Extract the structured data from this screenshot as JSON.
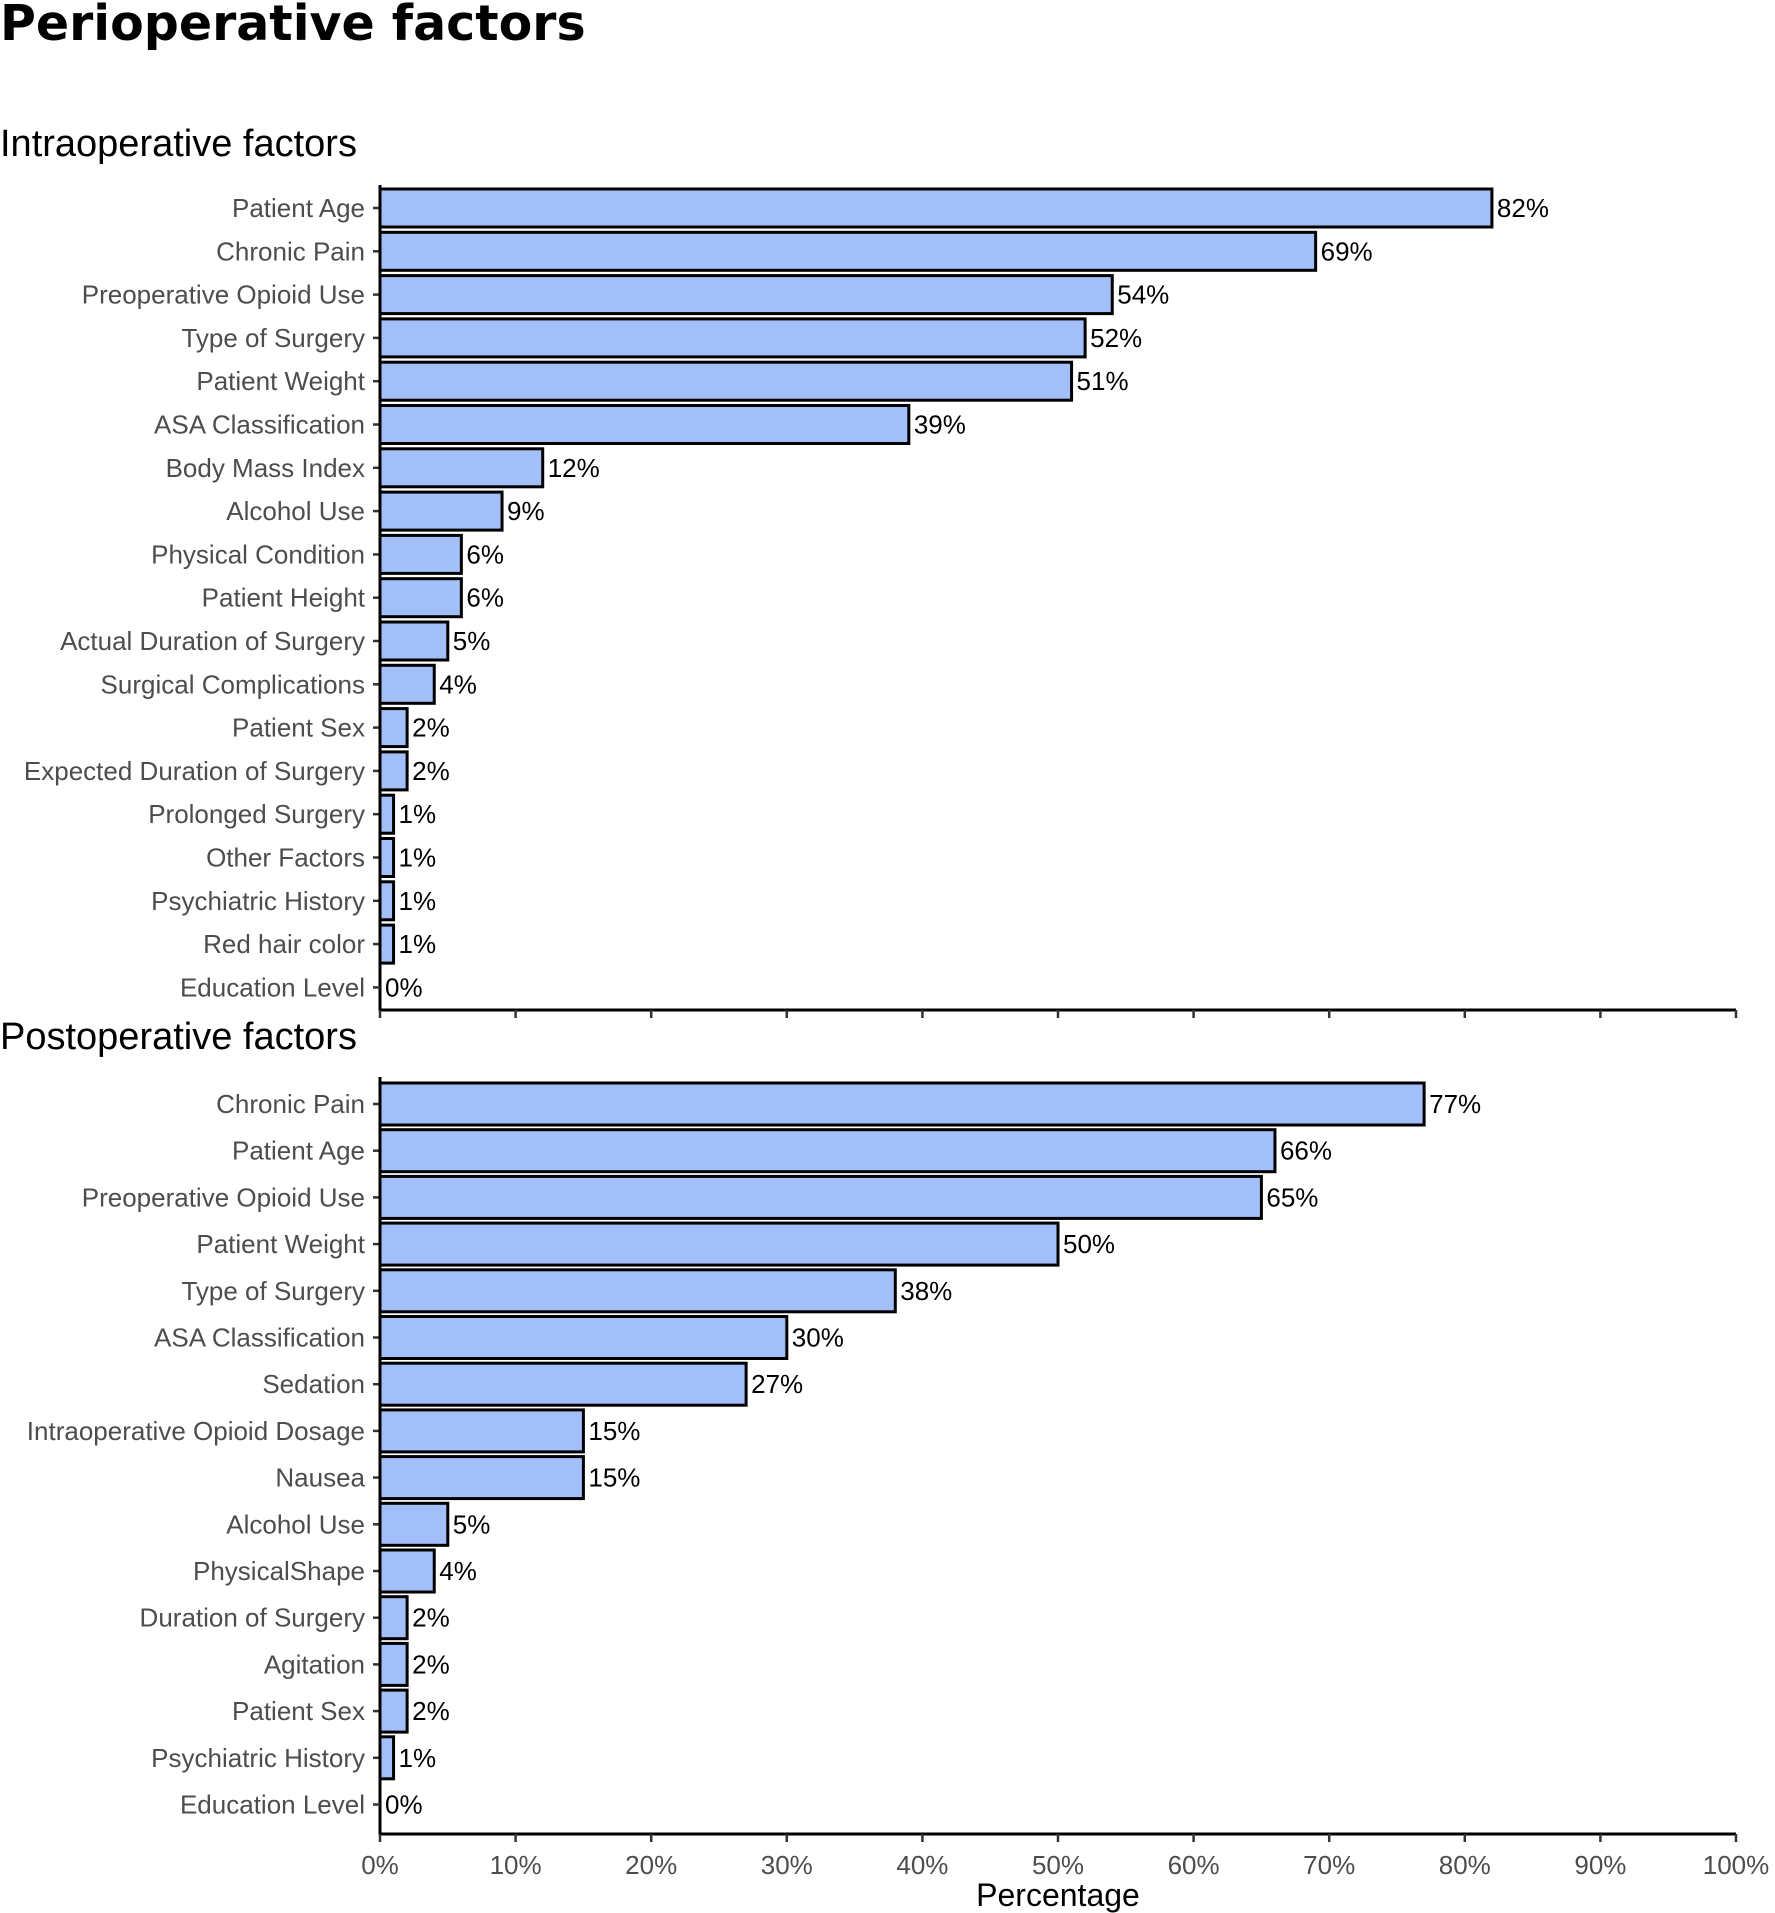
{
  "title": "Perioperative factors",
  "xlabel": "Percentage",
  "colors": {
    "bar_fill": "#a3bffa",
    "bar_stroke": "#000000"
  },
  "chart_data": [
    {
      "type": "bar",
      "orientation": "horizontal",
      "title": "Intraoperative factors",
      "categories": [
        "Patient Age",
        "Chronic Pain",
        "Preoperative Opioid Use",
        "Type of Surgery",
        "Patient Weight",
        "ASA Classification",
        "Body Mass Index",
        "Alcohol Use",
        "Physical Condition",
        "Patient Height",
        "Actual Duration of Surgery",
        "Surgical Complications",
        "Patient Sex",
        "Expected Duration of Surgery",
        "Prolonged Surgery",
        "Other Factors",
        "Psychiatric History",
        "Red hair color",
        "Education Level"
      ],
      "values": [
        82,
        69,
        54,
        52,
        51,
        39,
        12,
        9,
        6,
        6,
        5,
        4,
        2,
        2,
        1,
        1,
        1,
        1,
        0
      ],
      "labels": [
        "82%",
        "69%",
        "54%",
        "52%",
        "51%",
        "39%",
        "12%",
        "9%",
        "6%",
        "6%",
        "5%",
        "4%",
        "2%",
        "2%",
        "1%",
        "1%",
        "1%",
        "1%",
        "0%"
      ],
      "xlim": [
        0,
        100
      ],
      "grid": false
    },
    {
      "type": "bar",
      "orientation": "horizontal",
      "title": "Postoperative factors",
      "categories": [
        "Chronic Pain",
        "Patient Age",
        "Preoperative Opioid Use",
        "Patient Weight",
        "Type of Surgery",
        "ASA Classification",
        "Sedation",
        "Intraoperative Opioid Dosage",
        "Nausea",
        "Alcohol Use",
        "PhysicalShape",
        "Duration of Surgery",
        "Agitation",
        "Patient Sex",
        "Psychiatric History",
        "Education Level"
      ],
      "values": [
        77,
        66,
        65,
        50,
        38,
        30,
        27,
        15,
        15,
        5,
        4,
        2,
        2,
        2,
        1,
        0
      ],
      "labels": [
        "77%",
        "66%",
        "65%",
        "50%",
        "38%",
        "30%",
        "27%",
        "15%",
        "15%",
        "5%",
        "4%",
        "2%",
        "2%",
        "2%",
        "1%",
        "0%"
      ],
      "xlim": [
        0,
        100
      ],
      "xticks": [
        "0%",
        "10%",
        "20%",
        "30%",
        "40%",
        "50%",
        "60%",
        "70%",
        "80%",
        "90%",
        "100%"
      ],
      "grid": false
    }
  ]
}
